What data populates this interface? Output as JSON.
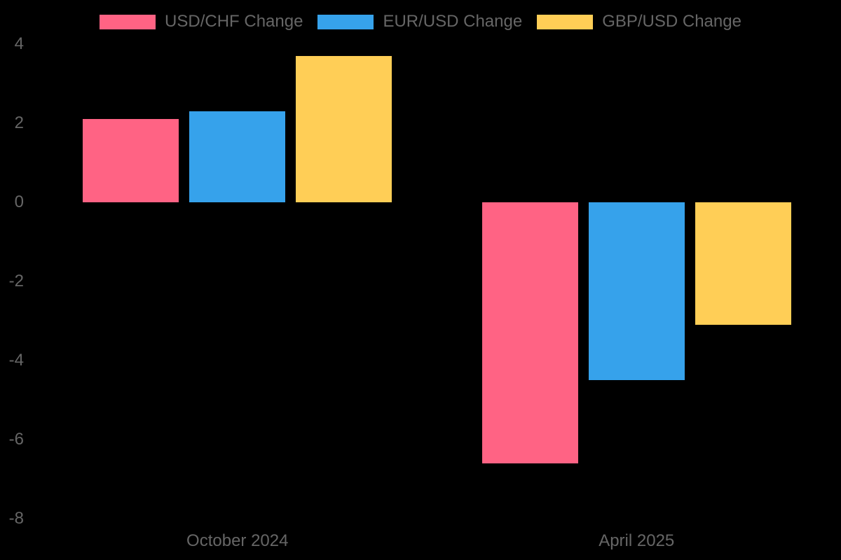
{
  "chart_data": {
    "type": "bar",
    "categories": [
      "October 2024",
      "April 2025"
    ],
    "series": [
      {
        "name": "USD/CHF Change",
        "color": "#FF6384",
        "values": [
          2.1,
          -6.6
        ]
      },
      {
        "name": "EUR/USD Change",
        "color": "#36A2EB",
        "values": [
          2.3,
          -4.5
        ]
      },
      {
        "name": "GBP/USD Change",
        "color": "#FFCE56",
        "values": [
          3.7,
          -3.1
        ]
      }
    ],
    "yticks": [
      4,
      2,
      0,
      -2,
      -4,
      -6,
      -8
    ],
    "ylim": [
      -8,
      4
    ],
    "ytick_step": 2,
    "grid": false,
    "legend_position": "top",
    "background_color": "#000000",
    "text_color": "#666666"
  }
}
